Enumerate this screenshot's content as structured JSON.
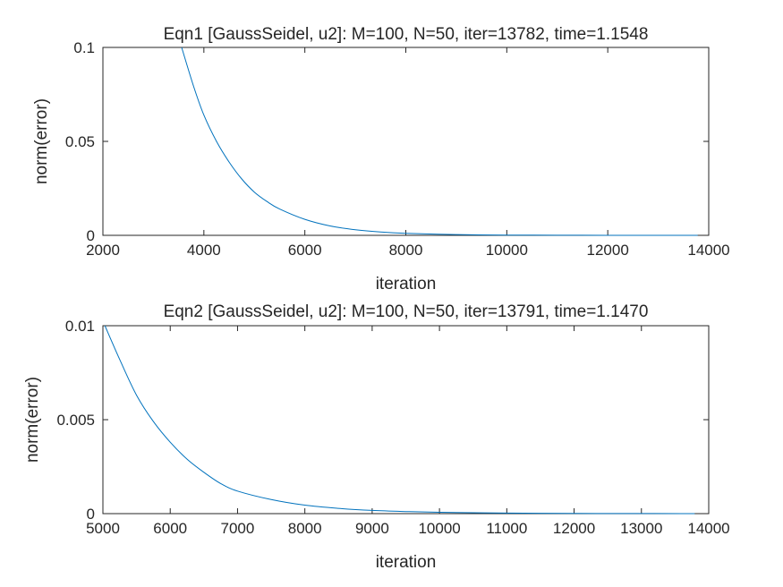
{
  "chart_data": [
    {
      "type": "line",
      "title": "Eqn1 [GaussSeidel, u2]: M=100, N=50, iter=13782, time=1.1548",
      "xlabel": "iteration",
      "ylabel": "norm(error)",
      "xlim": [
        2000,
        14000
      ],
      "ylim": [
        0,
        0.1
      ],
      "xticks": [
        2000,
        4000,
        6000,
        8000,
        10000,
        12000,
        14000
      ],
      "xtick_labels": [
        "2000",
        "4000",
        "6000",
        "8000",
        "10000",
        "12000",
        "14000"
      ],
      "yticks": [
        0,
        0.05,
        0.1
      ],
      "ytick_labels": [
        "0",
        "0.05",
        "0.1"
      ],
      "grid": false,
      "color": "#0072BD",
      "series": [
        {
          "x": [
            3560,
            3800,
            4000,
            4250,
            4500,
            4750,
            5000,
            5250,
            5500,
            6000,
            6500,
            7000,
            7500,
            8000,
            9000,
            10000,
            11000,
            12000,
            13000,
            13782
          ],
          "y": [
            0.1,
            0.079,
            0.064,
            0.05,
            0.039,
            0.03,
            0.023,
            0.018,
            0.014,
            0.0085,
            0.005,
            0.003,
            0.0018,
            0.0011,
            0.0004,
            0.00015,
            6e-05,
            2e-05,
            1e-05,
            5e-06
          ]
        }
      ]
    },
    {
      "type": "line",
      "title": "Eqn2 [GaussSeidel, u2]: M=100, N=50, iter=13791, time=1.1470",
      "xlabel": "iteration",
      "ylabel": "norm(error)",
      "xlim": [
        5000,
        14000
      ],
      "ylim": [
        0,
        0.01
      ],
      "xticks": [
        5000,
        6000,
        7000,
        8000,
        9000,
        10000,
        11000,
        12000,
        13000,
        14000
      ],
      "xtick_labels": [
        "5000",
        "6000",
        "7000",
        "8000",
        "9000",
        "10000",
        "11000",
        "12000",
        "13000",
        "14000"
      ],
      "yticks": [
        0,
        0.005,
        0.01
      ],
      "ytick_labels": [
        "0",
        "0.005",
        "0.01"
      ],
      "grid": false,
      "color": "#0072BD",
      "series": [
        {
          "x": [
            5030,
            5250,
            5500,
            5750,
            6000,
            6250,
            6500,
            6750,
            7000,
            7500,
            8000,
            8500,
            9000,
            9500,
            10000,
            11000,
            12000,
            13000,
            13791
          ],
          "y": [
            0.01,
            0.0082,
            0.0063,
            0.0049,
            0.0038,
            0.0029,
            0.0022,
            0.0016,
            0.0012,
            0.00075,
            0.00045,
            0.00028,
            0.00017,
            0.00011,
            7e-05,
            3e-05,
            1.2e-05,
            5e-06,
            2e-06
          ]
        }
      ]
    }
  ]
}
